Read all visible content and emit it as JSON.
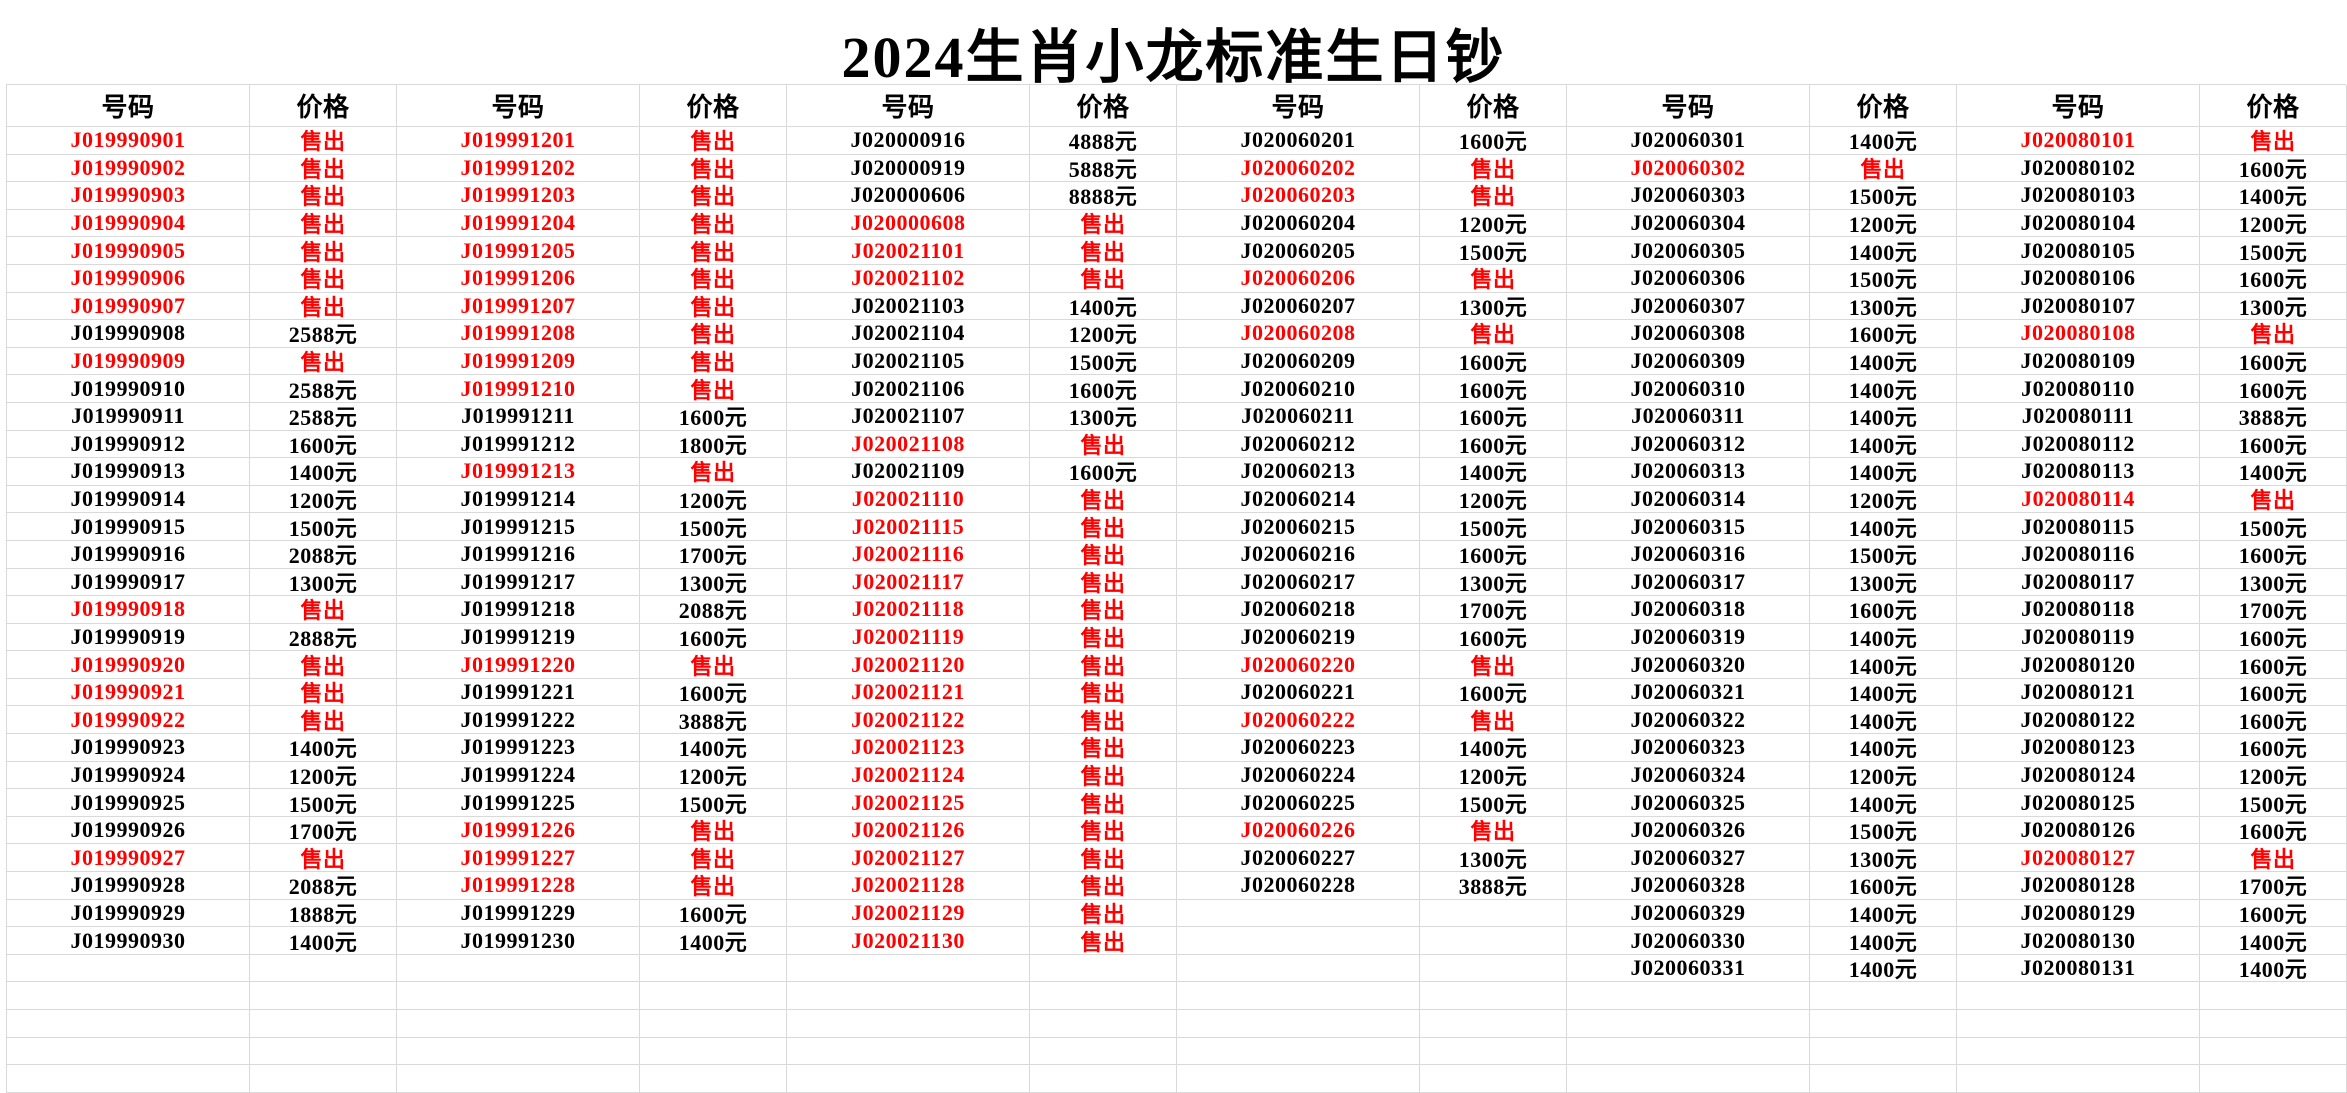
{
  "title": "2024生肖小龙标准生日钞",
  "sold_label": "售出",
  "column_headers": {
    "number": "号码",
    "price": "价格"
  },
  "colors": {
    "sold_red": "#ff0000",
    "text_black": "#000000",
    "gridline": "#d9d9d9",
    "background": "#ffffff"
  },
  "layout": {
    "column_groups": 6,
    "extra_empty_rows": 4
  },
  "columns": [
    {
      "group": 1,
      "rows": [
        [
          "J019990901",
          "售出"
        ],
        [
          "J019990902",
          "售出"
        ],
        [
          "J019990903",
          "售出"
        ],
        [
          "J019990904",
          "售出"
        ],
        [
          "J019990905",
          "售出"
        ],
        [
          "J019990906",
          "售出"
        ],
        [
          "J019990907",
          "售出"
        ],
        [
          "J019990908",
          "2588元"
        ],
        [
          "J019990909",
          "售出"
        ],
        [
          "J019990910",
          "2588元"
        ],
        [
          "J019990911",
          "2588元"
        ],
        [
          "J019990912",
          "1600元"
        ],
        [
          "J019990913",
          "1400元"
        ],
        [
          "J019990914",
          "1200元"
        ],
        [
          "J019990915",
          "1500元"
        ],
        [
          "J019990916",
          "2088元"
        ],
        [
          "J019990917",
          "1300元"
        ],
        [
          "J019990918",
          "售出"
        ],
        [
          "J019990919",
          "2888元"
        ],
        [
          "J019990920",
          "售出"
        ],
        [
          "J019990921",
          "售出"
        ],
        [
          "J019990922",
          "售出"
        ],
        [
          "J019990923",
          "1400元"
        ],
        [
          "J019990924",
          "1200元"
        ],
        [
          "J019990925",
          "1500元"
        ],
        [
          "J019990926",
          "1700元"
        ],
        [
          "J019990927",
          "售出"
        ],
        [
          "J019990928",
          "2088元"
        ],
        [
          "J019990929",
          "1888元"
        ],
        [
          "J019990930",
          "1400元"
        ]
      ]
    },
    {
      "group": 2,
      "rows": [
        [
          "J019991201",
          "售出"
        ],
        [
          "J019991202",
          "售出"
        ],
        [
          "J019991203",
          "售出"
        ],
        [
          "J019991204",
          "售出"
        ],
        [
          "J019991205",
          "售出"
        ],
        [
          "J019991206",
          "售出"
        ],
        [
          "J019991207",
          "售出"
        ],
        [
          "J019991208",
          "售出"
        ],
        [
          "J019991209",
          "售出"
        ],
        [
          "J019991210",
          "售出"
        ],
        [
          "J019991211",
          "1600元"
        ],
        [
          "J019991212",
          "1800元"
        ],
        [
          "J019991213",
          "售出"
        ],
        [
          "J019991214",
          "1200元"
        ],
        [
          "J019991215",
          "1500元"
        ],
        [
          "J019991216",
          "1700元"
        ],
        [
          "J019991217",
          "1300元"
        ],
        [
          "J019991218",
          "2088元"
        ],
        [
          "J019991219",
          "1600元"
        ],
        [
          "J019991220",
          "售出"
        ],
        [
          "J019991221",
          "1600元"
        ],
        [
          "J019991222",
          "3888元"
        ],
        [
          "J019991223",
          "1400元"
        ],
        [
          "J019991224",
          "1200元"
        ],
        [
          "J019991225",
          "1500元"
        ],
        [
          "J019991226",
          "售出"
        ],
        [
          "J019991227",
          "售出"
        ],
        [
          "J019991228",
          "售出"
        ],
        [
          "J019991229",
          "1600元"
        ],
        [
          "J019991230",
          "1400元"
        ]
      ]
    },
    {
      "group": 3,
      "rows": [
        [
          "J020000916",
          "4888元"
        ],
        [
          "J020000919",
          "5888元"
        ],
        [
          "J020000606",
          "8888元"
        ],
        [
          "J020000608",
          "售出"
        ],
        [
          "J020021101",
          "售出"
        ],
        [
          "J020021102",
          "售出"
        ],
        [
          "J020021103",
          "1400元"
        ],
        [
          "J020021104",
          "1200元"
        ],
        [
          "J020021105",
          "1500元"
        ],
        [
          "J020021106",
          "1600元"
        ],
        [
          "J020021107",
          "1300元"
        ],
        [
          "J020021108",
          "售出"
        ],
        [
          "J020021109",
          "1600元"
        ],
        [
          "J020021110",
          "售出"
        ],
        [
          "J020021115",
          "售出"
        ],
        [
          "J020021116",
          "售出"
        ],
        [
          "J020021117",
          "售出"
        ],
        [
          "J020021118",
          "售出"
        ],
        [
          "J020021119",
          "售出"
        ],
        [
          "J020021120",
          "售出"
        ],
        [
          "J020021121",
          "售出"
        ],
        [
          "J020021122",
          "售出"
        ],
        [
          "J020021123",
          "售出"
        ],
        [
          "J020021124",
          "售出"
        ],
        [
          "J020021125",
          "售出"
        ],
        [
          "J020021126",
          "售出"
        ],
        [
          "J020021127",
          "售出"
        ],
        [
          "J020021128",
          "售出"
        ],
        [
          "J020021129",
          "售出"
        ],
        [
          "J020021130",
          "售出"
        ]
      ]
    },
    {
      "group": 4,
      "rows": [
        [
          "J020060201",
          "1600元"
        ],
        [
          "J020060202",
          "售出"
        ],
        [
          "J020060203",
          "售出"
        ],
        [
          "J020060204",
          "1200元"
        ],
        [
          "J020060205",
          "1500元"
        ],
        [
          "J020060206",
          "售出"
        ],
        [
          "J020060207",
          "1300元"
        ],
        [
          "J020060208",
          "售出"
        ],
        [
          "J020060209",
          "1600元"
        ],
        [
          "J020060210",
          "1600元"
        ],
        [
          "J020060211",
          "1600元"
        ],
        [
          "J020060212",
          "1600元"
        ],
        [
          "J020060213",
          "1400元"
        ],
        [
          "J020060214",
          "1200元"
        ],
        [
          "J020060215",
          "1500元"
        ],
        [
          "J020060216",
          "1600元"
        ],
        [
          "J020060217",
          "1300元"
        ],
        [
          "J020060218",
          "1700元"
        ],
        [
          "J020060219",
          "1600元"
        ],
        [
          "J020060220",
          "售出"
        ],
        [
          "J020060221",
          "1600元"
        ],
        [
          "J020060222",
          "售出"
        ],
        [
          "J020060223",
          "1400元"
        ],
        [
          "J020060224",
          "1200元"
        ],
        [
          "J020060225",
          "1500元"
        ],
        [
          "J020060226",
          "售出"
        ],
        [
          "J020060227",
          "1300元"
        ],
        [
          "J020060228",
          "3888元"
        ]
      ]
    },
    {
      "group": 5,
      "rows": [
        [
          "J020060301",
          "1400元"
        ],
        [
          "J020060302",
          "售出"
        ],
        [
          "J020060303",
          "1500元"
        ],
        [
          "J020060304",
          "1200元"
        ],
        [
          "J020060305",
          "1400元"
        ],
        [
          "J020060306",
          "1500元"
        ],
        [
          "J020060307",
          "1300元"
        ],
        [
          "J020060308",
          "1600元"
        ],
        [
          "J020060309",
          "1400元"
        ],
        [
          "J020060310",
          "1400元"
        ],
        [
          "J020060311",
          "1400元"
        ],
        [
          "J020060312",
          "1400元"
        ],
        [
          "J020060313",
          "1400元"
        ],
        [
          "J020060314",
          "1200元"
        ],
        [
          "J020060315",
          "1400元"
        ],
        [
          "J020060316",
          "1500元"
        ],
        [
          "J020060317",
          "1300元"
        ],
        [
          "J020060318",
          "1600元"
        ],
        [
          "J020060319",
          "1400元"
        ],
        [
          "J020060320",
          "1400元"
        ],
        [
          "J020060321",
          "1400元"
        ],
        [
          "J020060322",
          "1400元"
        ],
        [
          "J020060323",
          "1400元"
        ],
        [
          "J020060324",
          "1200元"
        ],
        [
          "J020060325",
          "1400元"
        ],
        [
          "J020060326",
          "1500元"
        ],
        [
          "J020060327",
          "1300元"
        ],
        [
          "J020060328",
          "1600元"
        ],
        [
          "J020060329",
          "1400元"
        ],
        [
          "J020060330",
          "1400元"
        ],
        [
          "J020060331",
          "1400元"
        ]
      ]
    },
    {
      "group": 6,
      "rows": [
        [
          "J020080101",
          "售出"
        ],
        [
          "J020080102",
          "1600元"
        ],
        [
          "J020080103",
          "1400元"
        ],
        [
          "J020080104",
          "1200元"
        ],
        [
          "J020080105",
          "1500元"
        ],
        [
          "J020080106",
          "1600元"
        ],
        [
          "J020080107",
          "1300元"
        ],
        [
          "J020080108",
          "售出"
        ],
        [
          "J020080109",
          "1600元"
        ],
        [
          "J020080110",
          "1600元"
        ],
        [
          "J020080111",
          "3888元"
        ],
        [
          "J020080112",
          "1600元"
        ],
        [
          "J020080113",
          "1400元"
        ],
        [
          "J020080114",
          "售出"
        ],
        [
          "J020080115",
          "1500元"
        ],
        [
          "J020080116",
          "1600元"
        ],
        [
          "J020080117",
          "1300元"
        ],
        [
          "J020080118",
          "1700元"
        ],
        [
          "J020080119",
          "1600元"
        ],
        [
          "J020080120",
          "1600元"
        ],
        [
          "J020080121",
          "1600元"
        ],
        [
          "J020080122",
          "1600元"
        ],
        [
          "J020080123",
          "1600元"
        ],
        [
          "J020080124",
          "1200元"
        ],
        [
          "J020080125",
          "1500元"
        ],
        [
          "J020080126",
          "1600元"
        ],
        [
          "J020080127",
          "售出"
        ],
        [
          "J020080128",
          "1700元"
        ],
        [
          "J020080129",
          "1600元"
        ],
        [
          "J020080130",
          "1400元"
        ],
        [
          "J020080131",
          "1400元"
        ]
      ]
    }
  ]
}
